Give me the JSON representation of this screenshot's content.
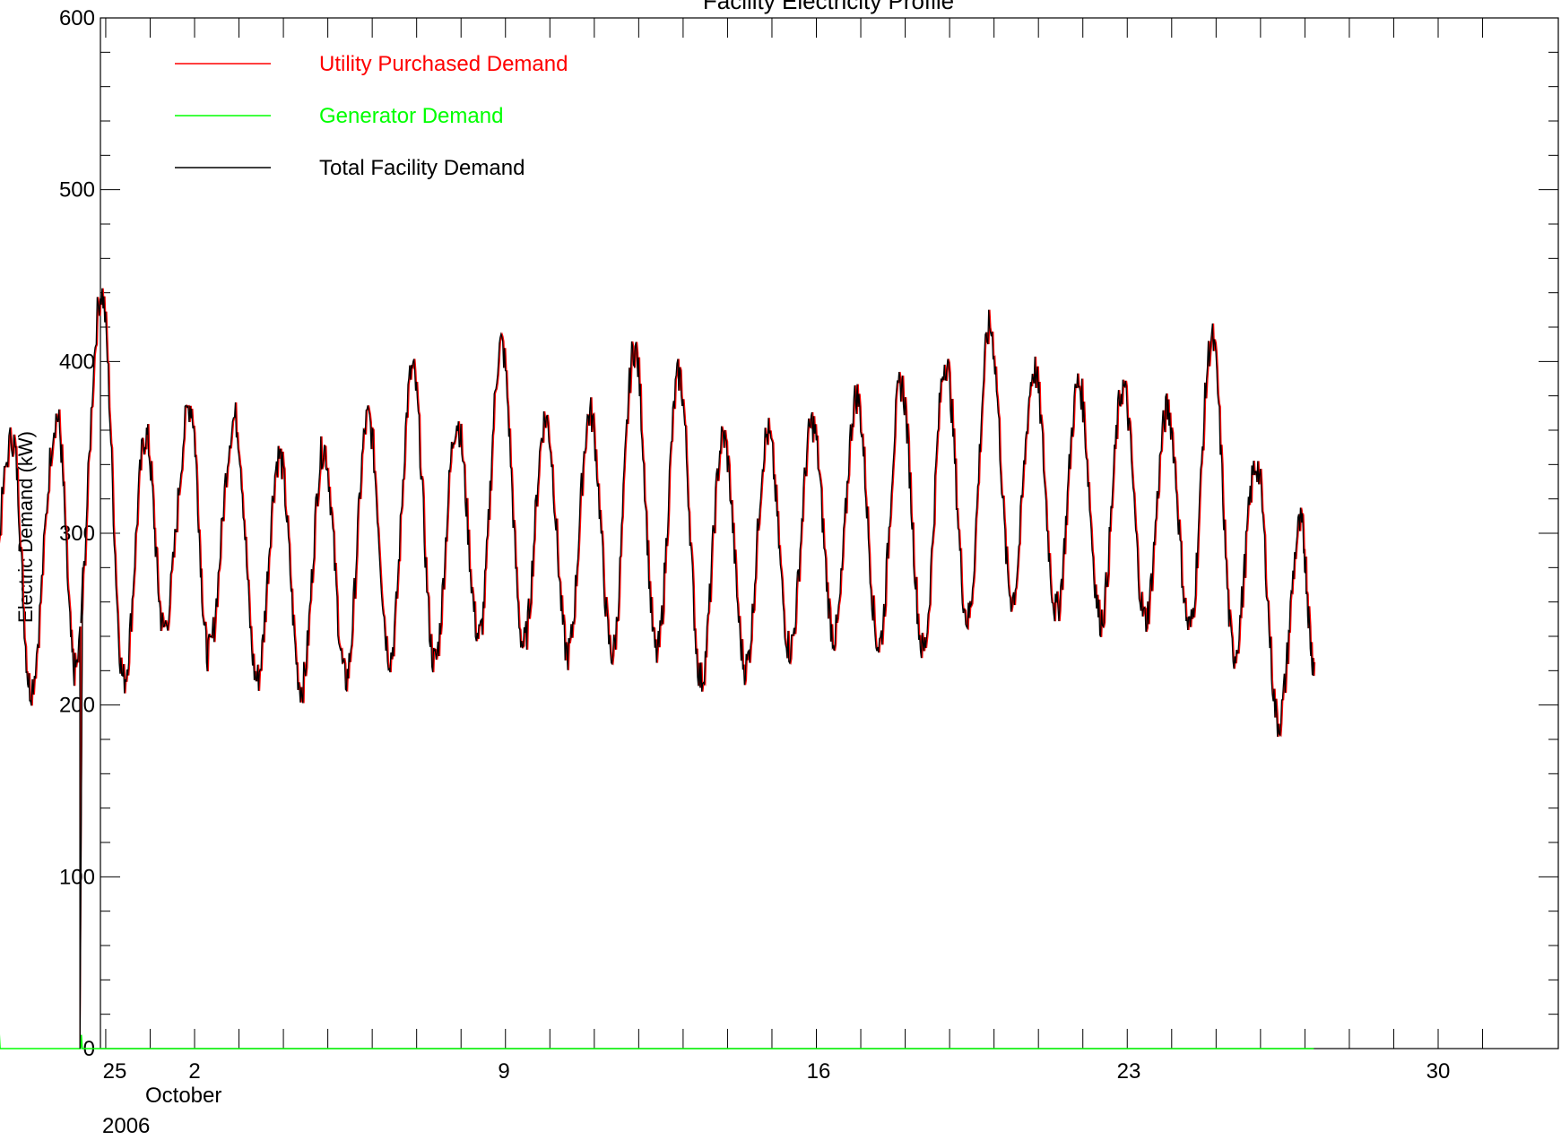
{
  "chart_data": {
    "type": "line",
    "title": "Facility Electricity Profile",
    "ylabel": "Electric Demand (kW)",
    "xlabel": "",
    "ylim": [
      0,
      600
    ],
    "xlim": [
      25.0,
      58.0
    ],
    "x_units": "days from 2006-09-00 (Oct 1 = 31)",
    "y_ticks": [
      0,
      100,
      200,
      300,
      400,
      500,
      600
    ],
    "x_ticks": [
      {
        "value": 26,
        "label": "25"
      },
      {
        "value": 32,
        "label": "2"
      },
      {
        "value": 39,
        "label": "9"
      },
      {
        "value": 46,
        "label": "16"
      },
      {
        "value": 53,
        "label": "23"
      },
      {
        "value": 60,
        "label": "30"
      }
    ],
    "x_sublabels": [
      "October",
      "2006"
    ],
    "legend": {
      "placement": "top-left",
      "entries": [
        {
          "name": "Utility Purchased Demand",
          "color": "#ff0000"
        },
        {
          "name": "Generator Demand",
          "color": "#00ff00"
        },
        {
          "name": "Total Facility Demand",
          "color": "#000000"
        }
      ]
    },
    "grid": false,
    "daily_peaks": [
      {
        "x": 26.9,
        "y": 360
      },
      {
        "x": 27.9,
        "y": 355
      },
      {
        "x": 28.9,
        "y": 368
      },
      {
        "x": 29.9,
        "y": 440
      },
      {
        "x": 30.9,
        "y": 357
      },
      {
        "x": 31.9,
        "y": 375
      },
      {
        "x": 32.9,
        "y": 367
      },
      {
        "x": 33.9,
        "y": 345
      },
      {
        "x": 34.9,
        "y": 350
      },
      {
        "x": 35.9,
        "y": 367
      },
      {
        "x": 36.9,
        "y": 395
      },
      {
        "x": 37.9,
        "y": 365
      },
      {
        "x": 38.9,
        "y": 410
      },
      {
        "x": 39.9,
        "y": 367
      },
      {
        "x": 40.9,
        "y": 370
      },
      {
        "x": 41.9,
        "y": 408
      },
      {
        "x": 42.9,
        "y": 392
      },
      {
        "x": 43.9,
        "y": 356
      },
      {
        "x": 44.9,
        "y": 358
      },
      {
        "x": 45.9,
        "y": 364
      },
      {
        "x": 46.9,
        "y": 380
      },
      {
        "x": 47.9,
        "y": 387
      },
      {
        "x": 48.9,
        "y": 400
      },
      {
        "x": 49.9,
        "y": 420
      },
      {
        "x": 50.9,
        "y": 395
      },
      {
        "x": 51.9,
        "y": 387
      },
      {
        "x": 52.9,
        "y": 385
      },
      {
        "x": 53.9,
        "y": 372
      },
      {
        "x": 54.9,
        "y": 413
      },
      {
        "x": 55.9,
        "y": 340
      },
      {
        "x": 56.9,
        "y": 305
      }
    ],
    "daily_troughs": [
      {
        "x": 26.2,
        "y": 220
      },
      {
        "x": 27.2,
        "y": 210
      },
      {
        "x": 28.3,
        "y": 210
      },
      {
        "x": 29.3,
        "y": 220
      },
      {
        "x": 30.4,
        "y": 215
      },
      {
        "x": 31.3,
        "y": 245
      },
      {
        "x": 32.3,
        "y": 230
      },
      {
        "x": 33.4,
        "y": 215
      },
      {
        "x": 34.4,
        "y": 210
      },
      {
        "x": 35.4,
        "y": 215
      },
      {
        "x": 36.4,
        "y": 228
      },
      {
        "x": 37.4,
        "y": 225
      },
      {
        "x": 38.4,
        "y": 240
      },
      {
        "x": 39.4,
        "y": 235
      },
      {
        "x": 40.4,
        "y": 230
      },
      {
        "x": 41.4,
        "y": 230
      },
      {
        "x": 42.4,
        "y": 230
      },
      {
        "x": 43.4,
        "y": 215
      },
      {
        "x": 44.4,
        "y": 222
      },
      {
        "x": 45.4,
        "y": 233
      },
      {
        "x": 46.4,
        "y": 240
      },
      {
        "x": 47.4,
        "y": 235
      },
      {
        "x": 48.4,
        "y": 232
      },
      {
        "x": 49.4,
        "y": 250
      },
      {
        "x": 50.4,
        "y": 262
      },
      {
        "x": 51.4,
        "y": 255
      },
      {
        "x": 52.4,
        "y": 250
      },
      {
        "x": 53.4,
        "y": 250
      },
      {
        "x": 54.4,
        "y": 245
      },
      {
        "x": 55.4,
        "y": 230
      },
      {
        "x": 56.4,
        "y": 190
      }
    ],
    "series": [
      {
        "name": "Utility Purchased Demand",
        "color": "#ff0000",
        "note_drop": {
          "x": 29.42,
          "y": 0
        }
      },
      {
        "name": "Generator Demand",
        "color": "#00ff00",
        "baseline": 0,
        "spikes": [
          {
            "x": 27.6,
            "y": 10
          },
          {
            "x": 29.45,
            "y": 8
          }
        ]
      },
      {
        "name": "Total Facility Demand",
        "color": "#000000",
        "start": {
          "x": 25.97,
          "y": 318
        },
        "end": {
          "x": 57.2,
          "y": 225
        },
        "note_drop": {
          "x": 29.42,
          "y": 0
        }
      }
    ]
  }
}
